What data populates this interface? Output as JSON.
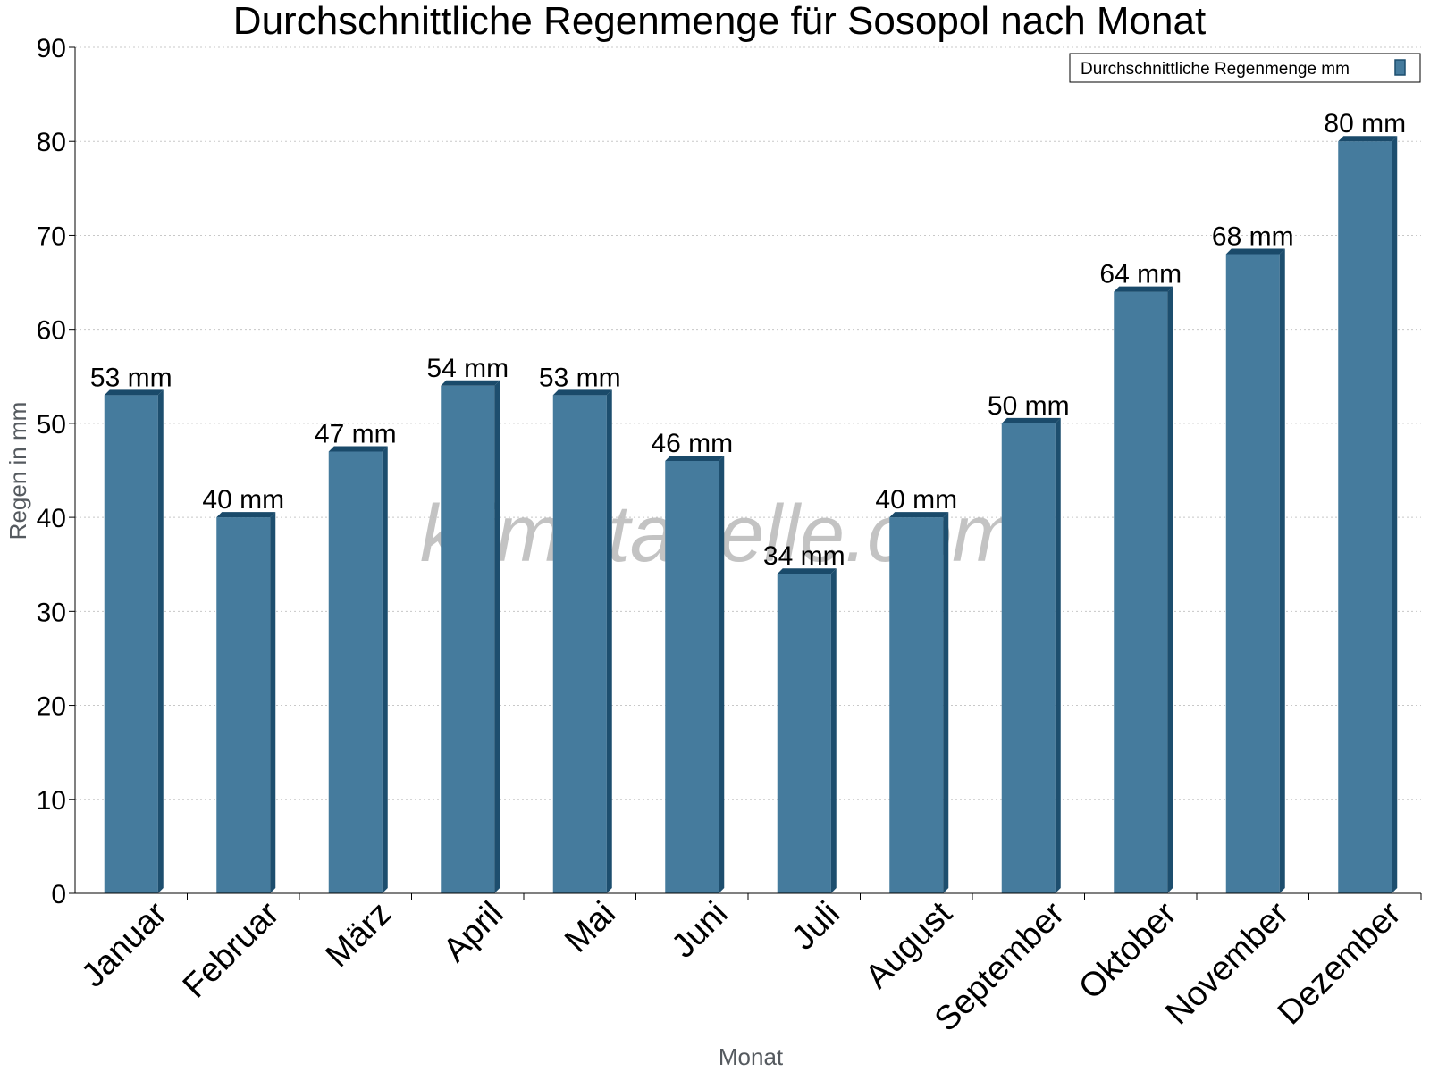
{
  "chart_data": {
    "type": "bar",
    "title": "Durchschnittliche Regenmenge für Sosopol nach Monat",
    "xlabel": "Monat",
    "ylabel": "Regen in mm",
    "ylim": [
      0,
      90
    ],
    "yticks": [
      0,
      10,
      20,
      30,
      40,
      50,
      60,
      70,
      80,
      90
    ],
    "grid": true,
    "legend_position": "top-right",
    "categories": [
      "Januar",
      "Februar",
      "März",
      "April",
      "Mai",
      "Juni",
      "Juli",
      "August",
      "September",
      "Oktober",
      "November",
      "Dezember"
    ],
    "series": [
      {
        "name": "Durchschnittliche Regenmenge mm",
        "values": [
          53,
          40,
          47,
          54,
          53,
          46,
          34,
          40,
          50,
          64,
          68,
          80
        ],
        "labels": [
          "53 mm",
          "40 mm",
          "47 mm",
          "54 mm",
          "53 mm",
          "46 mm",
          "34 mm",
          "40 mm",
          "50 mm",
          "64 mm",
          "68 mm",
          "80 mm"
        ],
        "color": "#457b9d",
        "side_color": "#1d4e6e",
        "top_color": "#1a4a6a"
      }
    ],
    "watermark": "klimatabelle.com"
  }
}
